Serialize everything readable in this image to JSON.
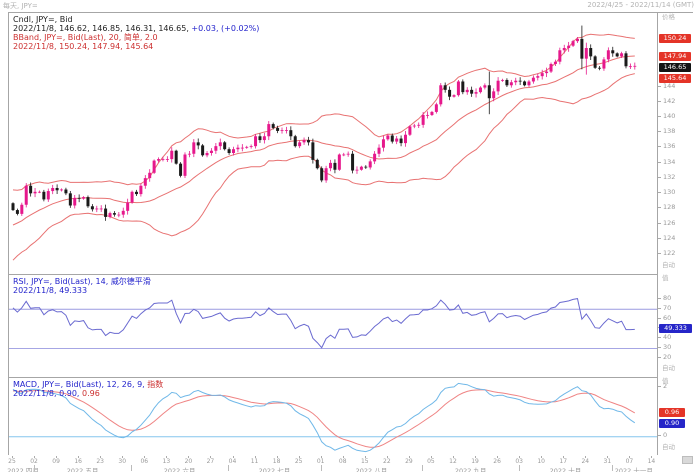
{
  "topbar": {
    "left": "每天, JPY=",
    "right": "2022/4/25 - 2022/11/14 (GMT)"
  },
  "legend_main": {
    "line1": "Cndl, JPY=, Bid",
    "line2_black": "2022/11/8, 146.62, 146.85, 146.31, 146.65,",
    "line2_blue": "+0.03, (+0.02%)",
    "line3": "BBand, JPY=, Bid(Last), 20, 简单, 2.0",
    "line4": "2022/11/8, 150.24, 147.94, 145.64"
  },
  "legend_rsi": {
    "line1": "RSI, JPY=, Bid(Last), 14, 威尔德平滑",
    "line2": "2022/11/8, 49.333"
  },
  "legend_macd": {
    "line1_blue": "MACD, JPY=, Bid(Last), 12, 26, 9,",
    "line1_red": "指数",
    "line2_blue": "2022/11/8, 0.90,",
    "line2_red": "0.96"
  },
  "y_axis_main": {
    "title": "价格",
    "auto": "自动",
    "ticks": [
      144,
      142,
      140,
      138,
      136,
      134,
      132,
      130,
      128,
      126,
      124,
      122
    ],
    "badges": [
      {
        "label": "150.24",
        "value": 150.24,
        "type": "red"
      },
      {
        "label": "147.94",
        "value": 147.94,
        "type": "red"
      },
      {
        "label": "146.65",
        "value": 146.65,
        "type": "black"
      },
      {
        "label": "145.64",
        "value": 145.64,
        "type": "red"
      }
    ]
  },
  "y_axis_rsi": {
    "title": "值",
    "auto": "自动",
    "ticks": [
      80,
      70,
      60,
      50,
      40,
      30,
      20
    ],
    "badges": [
      {
        "label": "49.333",
        "value": 49.333,
        "type": "blue"
      }
    ]
  },
  "y_axis_macd": {
    "title": "值",
    "auto": "自动",
    "ticks": [
      2,
      0
    ],
    "badges": [
      {
        "label": "0.96",
        "value": 0.96,
        "type": "red"
      },
      {
        "label": "0.90",
        "value": 0.9,
        "type": "blue"
      }
    ]
  },
  "x_axis": {
    "day_tick_indices": [
      0,
      5,
      10,
      15,
      20,
      25,
      30,
      35,
      40,
      45,
      50,
      55,
      60,
      65,
      70,
      75,
      80,
      85,
      90,
      95,
      100,
      105,
      110,
      115,
      120,
      125,
      130,
      135,
      140,
      145
    ],
    "day_tick_labels": [
      "25",
      "02",
      "09",
      "16",
      "23",
      "30",
      "06",
      "13",
      "20",
      "27",
      "04",
      "11",
      "18",
      "25",
      "01",
      "08",
      "15",
      "22",
      "29",
      "05",
      "12",
      "19",
      "26",
      "03",
      "10",
      "17",
      "24",
      "31",
      "07",
      "14"
    ],
    "months": [
      {
        "label": "2022 四月",
        "start": 0,
        "end": 5
      },
      {
        "label": "2022 五月",
        "start": 5,
        "end": 27
      },
      {
        "label": "2022 六月",
        "start": 27,
        "end": 49
      },
      {
        "label": "2022 七月",
        "start": 49,
        "end": 70
      },
      {
        "label": "2022 八月",
        "start": 70,
        "end": 93
      },
      {
        "label": "2022 九月",
        "start": 93,
        "end": 115
      },
      {
        "label": "2022 十月",
        "start": 115,
        "end": 136
      },
      {
        "label": "2022 十一月",
        "start": 136,
        "end": 146
      }
    ]
  },
  "colors": {
    "up_candle": "#e6188c",
    "down_candle": "#1a1a1a",
    "bollinger": "#e87272",
    "rsi_line": "#6a6ad0",
    "rsi_band": "#9a9ae0",
    "macd_line": "#70b8e8",
    "macd_signal": "#ef8484",
    "macd_zero": "#86c6ee",
    "badge_red": "#e43428",
    "badge_blue": "#2626c8",
    "badge_black": "#141414",
    "frame": "#a6a6a6",
    "axis_text": "#999999",
    "legend_blue": "#2323cc",
    "legend_red": "#cc3030"
  },
  "chart_data": [
    {
      "type": "candlestick",
      "title": "Cndl, JPY=, Bid (daily)",
      "symbol": "JPY=",
      "interval": "daily",
      "x_start_date": "2022-04-25",
      "x_end_date": "2022-11-14",
      "last_bar": {
        "date": "2022/11/8",
        "open": 146.62,
        "high": 146.85,
        "low": 146.31,
        "close": 146.65,
        "change": "+0.03",
        "change_pct": "+0.02%"
      },
      "ylim": [
        119.3,
        153.6
      ],
      "y_ticks": [
        144,
        142,
        140,
        138,
        136,
        134,
        132,
        130,
        128,
        126,
        124,
        122
      ],
      "grid": false,
      "closes": [
        127.7,
        127.2,
        128.4,
        130.9,
        129.9,
        130.1,
        130.1,
        129.1,
        130.2,
        130.6,
        130.3,
        130.4,
        129.9,
        128.3,
        129.3,
        129.2,
        129.4,
        128.2,
        127.8,
        127.9,
        127.9,
        126.8,
        127.3,
        127.1,
        127.1,
        127.6,
        128.7,
        130.1,
        129.8,
        130.9,
        131.9,
        132.6,
        134.2,
        134.4,
        134.4,
        134.4,
        135.5,
        133.8,
        132.2,
        135.0,
        135.1,
        136.6,
        136.2,
        134.9,
        135.2,
        135.5,
        136.1,
        136.6,
        135.7,
        135.2,
        135.7,
        135.9,
        135.9,
        136.0,
        136.1,
        137.4,
        136.9,
        137.4,
        139.0,
        138.5,
        138.1,
        138.2,
        138.2,
        137.4,
        136.1,
        136.6,
        136.9,
        136.6,
        134.3,
        133.2,
        131.6,
        133.2,
        133.9,
        133.0,
        135.0,
        135.0,
        135.1,
        132.9,
        133.0,
        133.4,
        133.3,
        134.1,
        135.1,
        135.9,
        137.0,
        137.5,
        136.7,
        137.1,
        136.5,
        137.6,
        138.7,
        138.8,
        138.9,
        140.2,
        140.2,
        140.6,
        141.6,
        144.1,
        143.5,
        142.6,
        142.8,
        144.6,
        143.2,
        143.5,
        143.0,
        143.2,
        143.8,
        144.1,
        142.4,
        143.3,
        144.7,
        144.8,
        144.1,
        144.5,
        144.7,
        144.6,
        144.1,
        144.6,
        145.1,
        145.3,
        145.7,
        145.9,
        146.9,
        147.2,
        148.7,
        149.0,
        149.3,
        149.9,
        150.2,
        147.6,
        149.0,
        147.9,
        146.4,
        146.3,
        147.5,
        148.7,
        148.3,
        147.9,
        148.3,
        146.6,
        146.6,
        146.65
      ],
      "warmup_closes": [
        119.2,
        119.5,
        121.0,
        121.2,
        122.1,
        123.1,
        121.8,
        121.9,
        122.5,
        122.5,
        122.8,
        123.6,
        123.8,
        124.0,
        124.3,
        125.4,
        126.4,
        126.7,
        126.3,
        126.5,
        127.9,
        128.9,
        128.5,
        127.9,
        128.5,
        128.6
      ],
      "wick_overrides": {
        "58": [
          139.4,
          136.9
        ],
        "108": [
          145.9,
          140.3
        ],
        "129": [
          151.95,
          146.2
        ],
        "130": [
          149.7,
          145.5
        ]
      },
      "overlay": {
        "name": "BBand",
        "period": 20,
        "stdev": 2.0,
        "mode": "简单",
        "last_upper": 150.24,
        "last_middle": 147.94,
        "last_lower": 145.64
      }
    },
    {
      "type": "line",
      "title": "RSI, JPY=, Bid(Last), 14, 威尔德平滑",
      "period": 14,
      "last_value": 49.333,
      "bands": [
        70,
        30
      ],
      "ylim": [
        0,
        104.9
      ],
      "y_ticks": [
        80,
        70,
        60,
        50,
        40,
        30,
        20
      ]
    },
    {
      "type": "line",
      "title": "MACD, JPY=, Bid(Last), 12, 26, 9, 指数",
      "params": [
        12,
        26,
        9
      ],
      "last_macd": 0.9,
      "last_signal": 0.96,
      "zero_line": 0,
      "y_ticks": [
        2,
        0
      ]
    }
  ]
}
